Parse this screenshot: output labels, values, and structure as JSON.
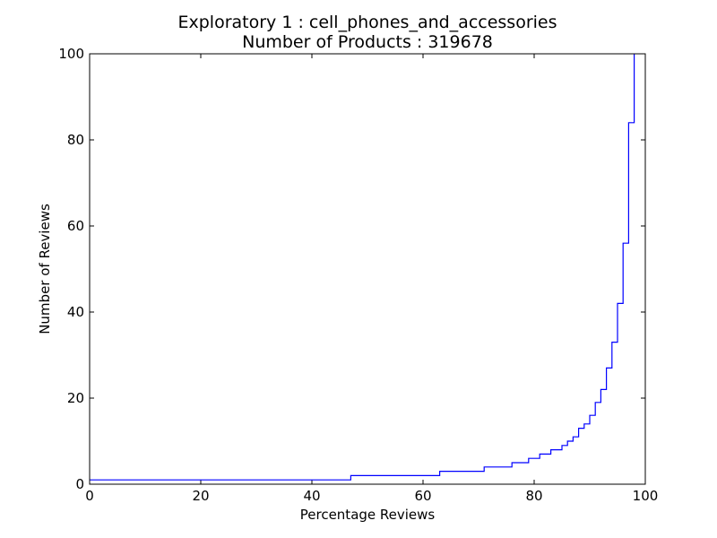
{
  "chart_data": {
    "type": "line",
    "title": "Exploratory 1 : cell_phones_and_accessories",
    "subtitle": "Number of Products : 319678",
    "xlabel": "Percentage Reviews",
    "ylabel": "Number of Reviews",
    "xlim": [
      0,
      100
    ],
    "ylim": [
      0,
      100
    ],
    "xticks": [
      "0",
      "20",
      "40",
      "60",
      "80",
      "100"
    ],
    "yticks": [
      "0",
      "20",
      "40",
      "60",
      "80",
      "100"
    ],
    "grid": false,
    "line_color": "#0000ff",
    "series": [
      {
        "step": "post",
        "points": [
          [
            0,
            1
          ],
          [
            47,
            2
          ],
          [
            63,
            3
          ],
          [
            71,
            4
          ],
          [
            76,
            5
          ],
          [
            79,
            6
          ],
          [
            81,
            7
          ],
          [
            83,
            8
          ],
          [
            85,
            9
          ],
          [
            86,
            10
          ],
          [
            87,
            11
          ],
          [
            88,
            13
          ],
          [
            89,
            14
          ],
          [
            90,
            16
          ],
          [
            91,
            19
          ],
          [
            92,
            22
          ],
          [
            93,
            27
          ],
          [
            94,
            33
          ],
          [
            95,
            42
          ],
          [
            96,
            56
          ],
          [
            97,
            84
          ],
          [
            98,
            100
          ]
        ]
      }
    ]
  }
}
